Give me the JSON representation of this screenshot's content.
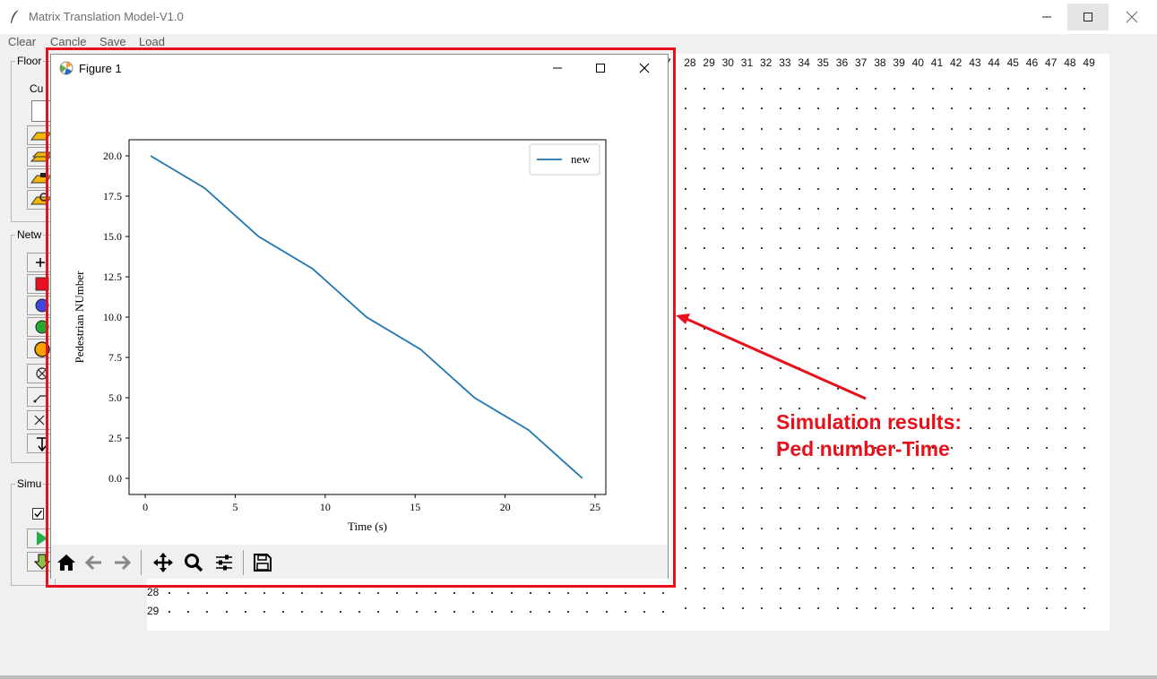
{
  "window": {
    "title": "Matrix Translation Model-V1.0"
  },
  "menu": {
    "items": [
      "Clear",
      "Cancle",
      "Save",
      "Load"
    ]
  },
  "left_panel": {
    "floor_group_title": "Floor",
    "floor_label": "Cu",
    "network_group_title": "Netw",
    "simulation_group_title": "Simu",
    "checkbox_checked": true
  },
  "grid": {
    "column_labels": [
      "7",
      "28",
      "29",
      "30",
      "31",
      "32",
      "33",
      "34",
      "35",
      "36",
      "37",
      "38",
      "39",
      "40",
      "41",
      "42",
      "43",
      "44",
      "45",
      "46",
      "47",
      "48",
      "49"
    ],
    "row_labels": [
      "28",
      "29"
    ]
  },
  "figure": {
    "title": "Figure 1",
    "toolbar": [
      "home-icon",
      "back-icon",
      "forward-icon",
      "pan-icon",
      "zoom-icon",
      "configure-icon",
      "save-icon"
    ]
  },
  "chart_data": {
    "type": "line",
    "title": "",
    "xlabel": "Time (s)",
    "ylabel": "Pedestrian NUmber",
    "xlim": [
      -0.9,
      25.6
    ],
    "ylim": [
      -1.0,
      21.0
    ],
    "xticks": [
      0,
      5,
      10,
      15,
      20,
      25
    ],
    "yticks": [
      0.0,
      2.5,
      5.0,
      7.5,
      10.0,
      12.5,
      15.0,
      17.5,
      20.0
    ],
    "xtick_labels": [
      "0",
      "5",
      "10",
      "15",
      "20",
      "25"
    ],
    "ytick_labels": [
      "0.0",
      "2.5",
      "5.0",
      "7.5",
      "10.0",
      "12.5",
      "15.0",
      "17.5",
      "20.0"
    ],
    "series": [
      {
        "name": "new",
        "color": "#1f77b4",
        "x": [
          0.3,
          3.3,
          6.3,
          9.3,
          12.3,
          15.3,
          18.3,
          21.3,
          24.3
        ],
        "y": [
          20,
          18,
          15,
          13,
          10,
          8,
          5,
          3,
          0
        ]
      }
    ],
    "legend": "top-right",
    "grid": false
  },
  "annotation": {
    "line1": "Simulation results:",
    "line2": "Ped number-Time",
    "color": "#e8101a"
  }
}
